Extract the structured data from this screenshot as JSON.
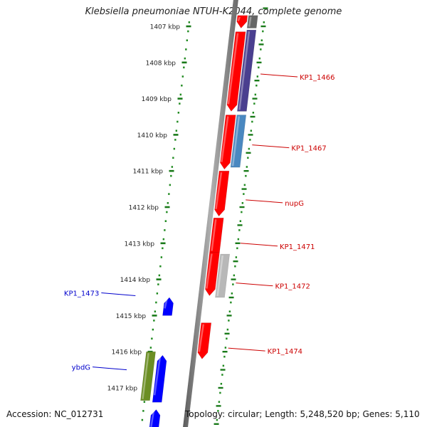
{
  "title": "Klebsiella pneumoniae NTUH-K2044, complete genome",
  "footer": {
    "accession": "Accession: NC_012731",
    "topology": "Topology: circular; Length: 5,248,520 bp; Genes: 5,110"
  },
  "colors": {
    "red": "#ff0000",
    "purple": "#4a3f8f",
    "steel_blue": "#4a88c0",
    "gray": "#b8b8b8",
    "blue": "#0000ff",
    "olive": "#6b8e23",
    "green_dots": "#228b22",
    "dark_gray": "#666666",
    "label_red": "#cc0000",
    "label_blue": "#0000cc"
  },
  "scale": {
    "ticks": [
      {
        "kbp": 1407,
        "label": "1407 kbp"
      },
      {
        "kbp": 1408,
        "label": "1408 kbp"
      },
      {
        "kbp": 1409,
        "label": "1409 kbp"
      },
      {
        "kbp": 1410,
        "label": "1410 kbp"
      },
      {
        "kbp": 1411,
        "label": "1411 kbp"
      },
      {
        "kbp": 1412,
        "label": "1412 kbp"
      },
      {
        "kbp": 1413,
        "label": "1413 kbp"
      },
      {
        "kbp": 1414,
        "label": "1414 kbp"
      },
      {
        "kbp": 1415,
        "label": "1415 kbp"
      },
      {
        "kbp": 1416,
        "label": "1416 kbp"
      },
      {
        "kbp": 1417,
        "label": "1417 kbp"
      }
    ]
  },
  "genes": [
    {
      "track": "outer",
      "start": 1406.7,
      "end": 1407.05,
      "color": "#ff0000",
      "arrow": true
    },
    {
      "track": "outer",
      "start": 1407.15,
      "end": 1409.35,
      "color": "#ff0000",
      "arrow": true
    },
    {
      "track": "outer",
      "start": 1409.45,
      "end": 1410.95,
      "color": "#ff0000",
      "arrow": true
    },
    {
      "track": "outer",
      "start": 1411.0,
      "end": 1412.25,
      "color": "#ff0000",
      "arrow": true
    },
    {
      "track": "outer",
      "start": 1412.3,
      "end": 1413.25,
      "color": "#ff0000",
      "arrow": false
    },
    {
      "track": "outer",
      "start": 1413.25,
      "end": 1414.45,
      "color": "#ff0000",
      "arrow": true
    },
    {
      "track": "outer",
      "start": 1415.2,
      "end": 1416.2,
      "color": "#ff0000",
      "arrow": true
    },
    {
      "track": "inner",
      "start": 1406.7,
      "end": 1407.05,
      "color": "#666666",
      "arrow": false
    },
    {
      "track": "inner",
      "start": 1407.1,
      "end": 1409.35,
      "color": "#4a3f8f",
      "arrow": false
    },
    {
      "track": "inner",
      "start": 1409.45,
      "end": 1410.9,
      "color": "#4a88c0",
      "arrow": false
    },
    {
      "track": "inner",
      "start": 1413.3,
      "end": 1414.5,
      "color": "#b8b8b8",
      "arrow": false
    },
    {
      "track": "rev",
      "start": 1414.5,
      "end": 1415.0,
      "color": "#0000ff",
      "arrow": true
    },
    {
      "track": "rev",
      "start": 1416.1,
      "end": 1417.4,
      "color": "#0000ff",
      "arrow": true
    },
    {
      "track": "rev",
      "start": 1417.6,
      "end": 1418.5,
      "color": "#0000ff",
      "arrow": true
    },
    {
      "track": "olive",
      "start": 1416.0,
      "end": 1417.35,
      "color": "#6b8e23",
      "arrow": false
    }
  ],
  "labels": [
    {
      "text": "KP1_1466",
      "side": "right",
      "kbp": 1408.32
    },
    {
      "text": "KP1_1467",
      "side": "right",
      "kbp": 1410.28
    },
    {
      "text": "nupG",
      "side": "right",
      "kbp": 1411.8
    },
    {
      "text": "KP1_1471",
      "side": "right",
      "kbp": 1413.0
    },
    {
      "text": "KP1_1472",
      "side": "right",
      "kbp": 1414.1
    },
    {
      "text": "KP1_1473",
      "side": "left",
      "kbp": 1414.45
    },
    {
      "text": "KP1_1474",
      "side": "right",
      "kbp": 1415.9
    },
    {
      "text": "ybdG",
      "side": "left",
      "kbp": 1416.5
    }
  ]
}
